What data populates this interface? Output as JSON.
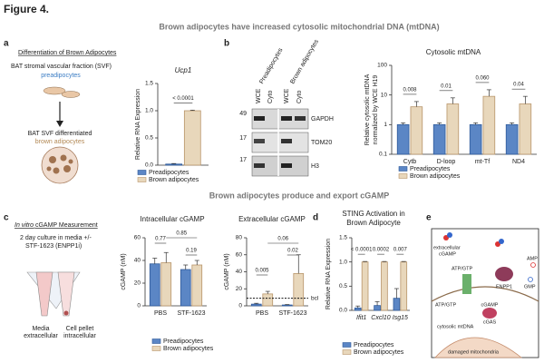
{
  "figure_title": "Figure 4.",
  "headers": [
    "Brown adipocytes have increased cytosolic mitochondrial DNA (mtDNA)",
    "Brown adipocytes produce and export cGAMP"
  ],
  "panel_labels": [
    "a",
    "b",
    "c",
    "d",
    "e"
  ],
  "panel_a": {
    "title": "Differentiation of Brown Adipocytes",
    "lines": [
      "BAT stromal vascular fraction (SVF)",
      "preadipocytes",
      "BAT SVF differentiated",
      "brown adipocytes"
    ]
  },
  "blot": {
    "columns": [
      "Preadipocytes",
      "Brown adipocytes"
    ],
    "lanes": [
      "WCE",
      "Cyto",
      "WCE",
      "Cyto"
    ],
    "markers": [
      49,
      17,
      17
    ],
    "proteins": [
      "GAPDH",
      "TOM20",
      "H3"
    ]
  },
  "panel_c": {
    "title_italic": "In vitro",
    "title": "cGAMP Measurement",
    "lines": [
      "2 day culture in media +/-",
      "STF-1623 (ENPP1i)"
    ],
    "tubes": [
      "Media",
      "extracellular",
      "Cell pellet",
      "intracellular"
    ]
  },
  "panel_e": {
    "labels": [
      "extracellular",
      "cGAMP",
      "ATP/GTP",
      "ENPP1",
      "AMP",
      "GMP",
      "ATP/GTP",
      "cGAS",
      "cGAMP",
      "cytosolic mtDNA",
      "damaged mitochondria"
    ]
  },
  "chart_data": [
    {
      "type": "bar",
      "title": "Ucp1",
      "ylabel": "Relative RNA Expression",
      "categories": [
        null
      ],
      "series": [
        {
          "name": "Preadipocytes",
          "color": "#5b86c5",
          "values": [
            0.02
          ],
          "errors": [
            0.01
          ]
        },
        {
          "name": "Brown adipocytes",
          "color": "#e8d7bb",
          "values": [
            1.0
          ],
          "errors": [
            0.01
          ]
        }
      ],
      "pvalues": [
        "< 0.0001"
      ],
      "ylim": [
        0,
        1.5
      ],
      "yticks": [
        {
          "value": 0,
          "label": "0.0"
        },
        {
          "value": 0.5,
          "label": "0.5"
        },
        {
          "value": 1,
          "label": "1.0"
        },
        {
          "value": 1.5,
          "label": "1.5"
        }
      ]
    },
    {
      "type": "bar",
      "title": "Cytosolic mtDNA",
      "ylabel": [
        "Relative cytosolic mtDNA",
        "normalized by WCE H19"
      ],
      "log": true,
      "categories": [
        "Cytb",
        "D-loop",
        "mt-Tf",
        "ND4"
      ],
      "series": [
        {
          "name": "Preadipocytes",
          "color": "#5b86c5",
          "values": [
            1,
            1,
            1,
            1
          ],
          "errors": [
            0.15,
            0.15,
            0.15,
            0.15
          ]
        },
        {
          "name": "Brown adipocytes",
          "color": "#e8d7bb",
          "values": [
            4,
            5,
            9,
            5
          ],
          "errors": [
            2,
            3,
            6,
            4
          ]
        }
      ],
      "pvalues": [
        "0.008",
        "0.01",
        "0.060",
        "0.04"
      ],
      "ylim": [
        0.1,
        100
      ],
      "yticks": [
        0.1,
        1,
        10,
        100
      ]
    },
    {
      "type": "bar",
      "title": "Intracellular cGAMP",
      "ylabel": "cGAMP (nM)",
      "categories": [
        "PBS",
        "STF-1623"
      ],
      "series": [
        {
          "name": "Preadipocytes",
          "color": "#5b86c5",
          "values": [
            37,
            32
          ],
          "errors": [
            5,
            4
          ]
        },
        {
          "name": "Brown adipocytes",
          "color": "#e8d7bb",
          "values": [
            38,
            36
          ],
          "errors": [
            9,
            4
          ]
        }
      ],
      "annotations": [
        "0.77",
        "0.85",
        "0.19"
      ],
      "ylim": [
        0,
        60
      ],
      "yticks": [
        0,
        20,
        40,
        60
      ]
    },
    {
      "type": "bar",
      "title": "Extracellular cGAMP",
      "ylabel": "cGAMP (nM)",
      "categories": [
        "PBS",
        "STF-1623"
      ],
      "legend": false,
      "series": [
        {
          "name": "Preadipocytes",
          "color": "#5b86c5",
          "values": [
            2,
            1
          ],
          "errors": [
            1,
            0.5
          ]
        },
        {
          "name": "Brown adipocytes",
          "color": "#e8d7bb",
          "values": [
            14,
            38
          ],
          "errors": [
            3,
            22
          ]
        }
      ],
      "annotations": [
        "0.005",
        "0.06",
        "0.02"
      ],
      "reference_line": {
        "value": 9,
        "label": "bcl"
      },
      "ylim": [
        0,
        80
      ],
      "yticks": [
        0,
        20,
        40,
        60,
        80
      ]
    },
    {
      "type": "bar",
      "title": [
        "STING Activation in",
        "Brown Adipocyte"
      ],
      "ylabel": "Relative RNA Expression",
      "categories": [
        "Ifit1",
        "Cxcl10",
        "Isg15"
      ],
      "series": [
        {
          "name": "Preadipocytes",
          "color": "#5b86c5",
          "values": [
            0.05,
            0.1,
            0.25
          ],
          "errors": [
            0.04,
            0.08,
            0.2
          ]
        },
        {
          "name": "Brown adipocytes",
          "color": "#e8d7bb",
          "values": [
            1,
            1,
            1
          ],
          "errors": [
            0.01,
            0.01,
            0.01
          ]
        }
      ],
      "pvalues": [
        "< 0.0001",
        "0.0002",
        "0.007"
      ],
      "ylim": [
        0,
        1.5
      ],
      "yticks": [
        {
          "value": 0,
          "label": "0.0"
        },
        {
          "value": 0.5,
          "label": "0.5"
        },
        {
          "value": 1,
          "label": "1.0"
        },
        {
          "value": 1.5,
          "label": "1.5"
        }
      ]
    }
  ]
}
